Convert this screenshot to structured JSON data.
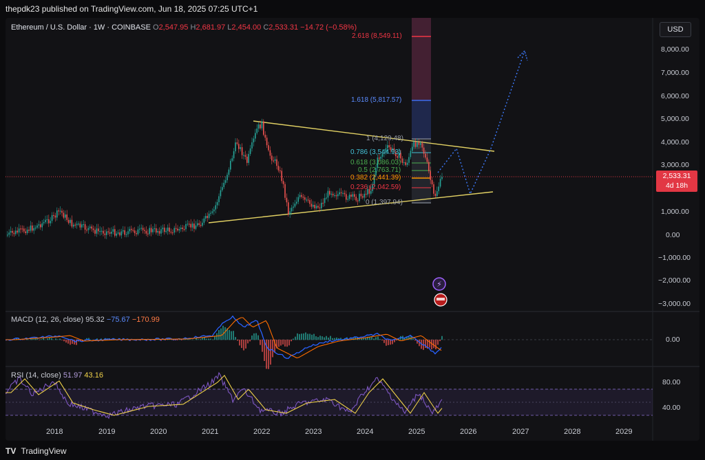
{
  "header": {
    "published": "thepdk23 published on TradingView.com, Jun 18, 2025 07:25 UTC+1"
  },
  "main_legend": {
    "symbol": "Ethereum / U.S. Dollar · 1W · COINBASE",
    "open_k": "O",
    "open": "2,547.95",
    "high_k": "H",
    "high": "2,681.97",
    "low_k": "L",
    "low": "2,454.00",
    "close_k": "C",
    "close": "2,533.31",
    "change": "−14.72 (−0.58%)"
  },
  "currency_button": "USD",
  "price_axis": [
    "8,000.00",
    "7,000.00",
    "6,000.00",
    "5,000.00",
    "4,000.00",
    "3,000.00",
    "1,000.00",
    "0.00",
    "−1,000.00",
    "−2,000.00",
    "−3,000.00"
  ],
  "price_tag": {
    "price": "2,533.31",
    "countdown": "4d 18h"
  },
  "fib_levels": [
    {
      "label": "2.618 (8,549.11)",
      "color": "#f23645"
    },
    {
      "label": "1.618 (5,817.57)",
      "color": "#3d6cf0"
    },
    {
      "label": "1 (4,129.48)",
      "color": "#9aa0aa"
    },
    {
      "label": "0.786 (3,544.93)",
      "color": "#44c3d8"
    },
    {
      "label": "0.618 (3,086.03)",
      "color": "#4caf50"
    },
    {
      "label": "0.5 (2,763.71)",
      "color": "#4caf50"
    },
    {
      "label": "0.382 (2,441.39)",
      "color": "#ff9800"
    },
    {
      "label": "0.236 (2,042.59)",
      "color": "#f23645"
    },
    {
      "label": "0 (1,397.94)",
      "color": "#9aa0aa"
    }
  ],
  "macd": {
    "label": "MACD (12, 26, close)",
    "v1": "95.32",
    "v2": "−75.67",
    "v3": "−170.99",
    "axis": "0.00"
  },
  "rsi": {
    "label": "RSI (14, close)",
    "v1": "51.97",
    "v2": "43.16",
    "axis_top": "80.00",
    "axis_bottom": "40.00"
  },
  "time_axis": [
    "2018",
    "2019",
    "2020",
    "2021",
    "2022",
    "2023",
    "2024",
    "2025",
    "2026",
    "2027",
    "2028",
    "2029"
  ],
  "footer": {
    "brand": "TradingView",
    "logo": "TV"
  },
  "colors": {
    "up": "#26a69a",
    "down": "#ef5350",
    "triangle": "#e3d264",
    "projection": "#3d7bff",
    "macd_line": "#2962ff",
    "signal_line": "#ff6d00",
    "rsi_line": "#7e57c2",
    "rsi_ma": "#f0d24a"
  }
}
